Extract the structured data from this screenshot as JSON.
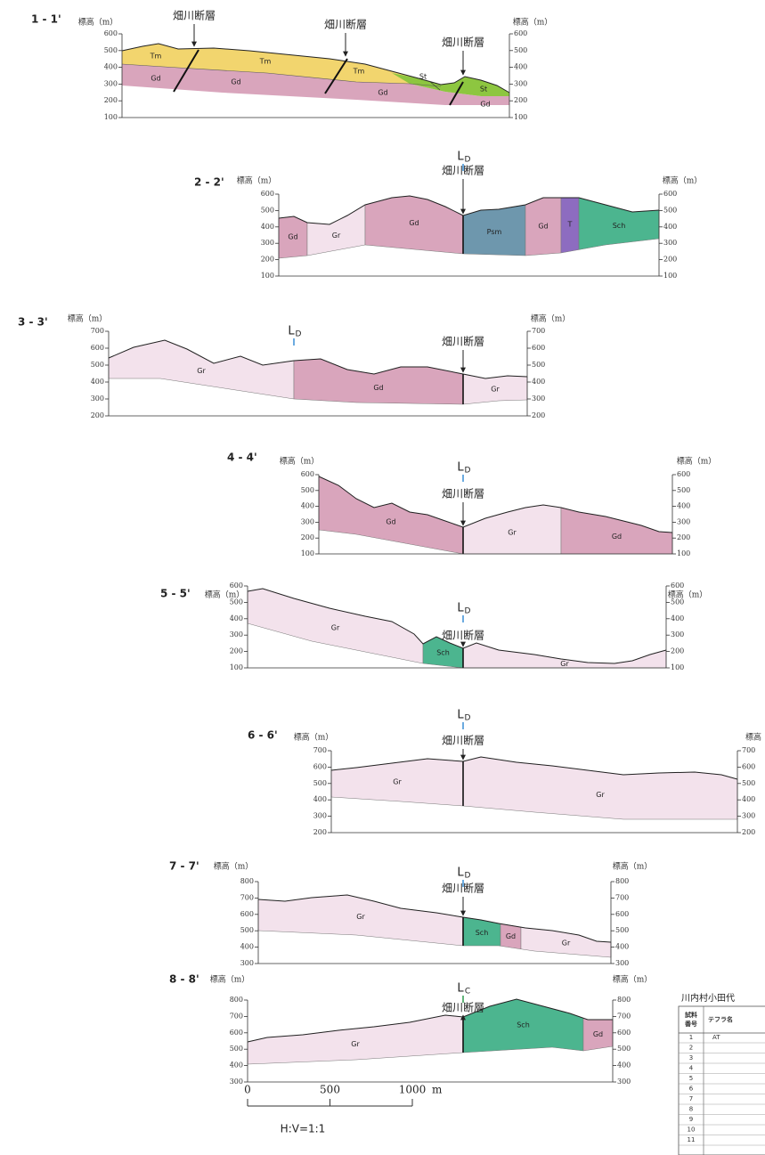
{
  "sections": [
    {
      "label": "1 - 1'",
      "axis_left": "標高（m）",
      "axis_right": "標高（m）",
      "ticks": [
        600,
        500,
        400,
        300,
        200,
        100
      ],
      "faults": [
        "畑川断層",
        "畑川断層",
        "畑川断層"
      ],
      "units": [
        "Tm",
        "Tm",
        "Tm",
        "Gd",
        "Gd",
        "Gd",
        "Gd",
        "St",
        "St"
      ]
    },
    {
      "label": "2 - 2'",
      "axis_left": "標高（m）",
      "axis_right": "標高（m）",
      "ticks": [
        600,
        500,
        400,
        300,
        200,
        100
      ],
      "marker": {
        "letter": "L",
        "subscript": "D"
      },
      "faults": [
        "畑川断層"
      ],
      "units": [
        "Gd",
        "Gr",
        "Gd",
        "Psm",
        "Gd",
        "T",
        "Sch"
      ]
    },
    {
      "label": "3 - 3'",
      "axis_left": "標高（m）",
      "axis_right": "標高（m）",
      "ticks": [
        700,
        600,
        500,
        400,
        300,
        200
      ],
      "marker": {
        "letter": "L",
        "subscript": "D"
      },
      "faults": [
        "畑川断層"
      ],
      "units": [
        "Gr",
        "Gd",
        "Gr"
      ]
    },
    {
      "label": "4 - 4'",
      "axis_left": "標高（m）",
      "axis_right": "標高（m）",
      "ticks": [
        600,
        500,
        400,
        300,
        200,
        100
      ],
      "marker": {
        "letter": "L",
        "subscript": "D"
      },
      "faults": [
        "畑川断層"
      ],
      "units": [
        "Gd",
        "Gr",
        "Gd"
      ]
    },
    {
      "label": "5 - 5'",
      "axis_left": "標高（m）",
      "axis_right": "標高（m）",
      "ticks": [
        600,
        500,
        400,
        300,
        200,
        100
      ],
      "marker": {
        "letter": "L",
        "subscript": "D"
      },
      "faults": [
        "畑川断層"
      ],
      "units": [
        "Gr",
        "Sch",
        "Gr"
      ]
    },
    {
      "label": "6 - 6'",
      "axis_left": "標高（m）",
      "axis_right": "標高",
      "ticks": [
        700,
        600,
        500,
        400,
        300,
        200
      ],
      "marker": {
        "letter": "L",
        "subscript": "D"
      },
      "faults": [
        "畑川断層"
      ],
      "units": [
        "Gr",
        "Gr"
      ]
    },
    {
      "label": "7 - 7'",
      "axis_left": "標高（m）",
      "axis_right": "標高（m）",
      "ticks": [
        800,
        700,
        600,
        500,
        400,
        300
      ],
      "marker": {
        "letter": "L",
        "subscript": "D"
      },
      "faults": [
        "畑川断層"
      ],
      "units": [
        "Gr",
        "Sch",
        "Gd",
        "Gr"
      ]
    },
    {
      "label": "8 - 8'",
      "axis_left": "標高（m）",
      "axis_right": "標高（m）",
      "ticks": [
        800,
        700,
        600,
        500,
        400,
        300
      ],
      "marker": {
        "letter": "L",
        "subscript": "C"
      },
      "faults": [
        "畑川断層"
      ],
      "units": [
        "Gr",
        "Sch",
        "Gd"
      ]
    }
  ],
  "scale": {
    "ticks": [
      0,
      500,
      1000
    ],
    "unit": "m",
    "ratio": "H:V=1:1"
  },
  "table": {
    "title": "川内村小田代",
    "header_number": [
      "試料",
      "番号"
    ],
    "header_name": "テフラ名",
    "rows": [
      [
        "1",
        "AT"
      ],
      [
        "2"
      ],
      [
        "3"
      ],
      [
        "4"
      ],
      [
        "5"
      ],
      [
        "6"
      ],
      [
        "7"
      ],
      [
        "8"
      ],
      [
        "9"
      ],
      [
        "10"
      ],
      [
        "11"
      ]
    ]
  }
}
